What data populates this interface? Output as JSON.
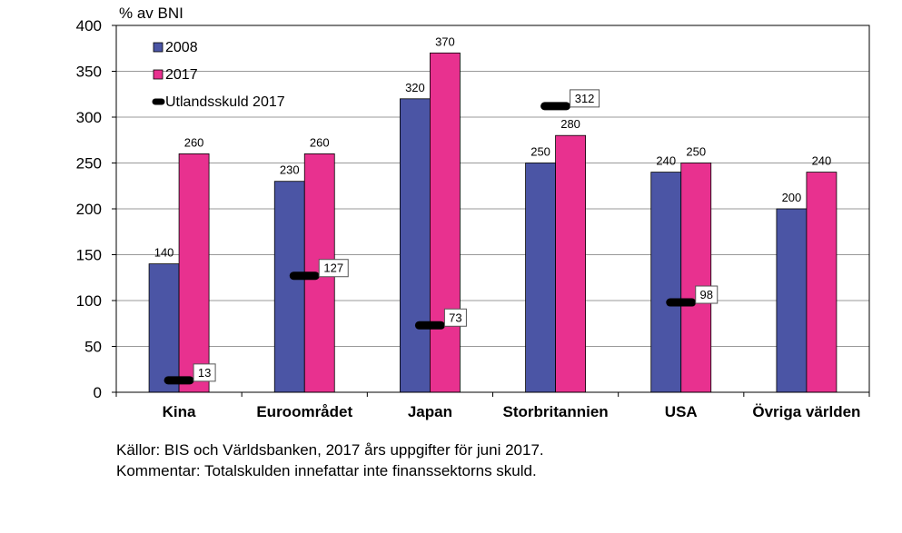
{
  "chart_data": {
    "type": "bar",
    "ylabel": "% av BNI",
    "ylim": [
      0,
      400
    ],
    "yticks": [
      0,
      50,
      100,
      150,
      200,
      250,
      300,
      350,
      400
    ],
    "grid": true,
    "legend_position": "top-left",
    "categories": [
      "Kina",
      "Euroområdet",
      "Japan",
      "Storbritannien",
      "USA",
      "Övriga världen"
    ],
    "series": [
      {
        "name": "2008",
        "values": [
          140,
          230,
          320,
          250,
          240,
          200
        ],
        "color": "#4b55a5"
      },
      {
        "name": "2017",
        "values": [
          260,
          260,
          370,
          280,
          250,
          240
        ],
        "color": "#e8318f"
      }
    ],
    "markers": {
      "name": "Utlandsskuld 2017",
      "values": [
        13,
        127,
        73,
        312,
        98,
        null
      ],
      "color": "#000000"
    }
  },
  "footnotes": {
    "source": "Källor: BIS och Världsbanken, 2017 års uppgifter för juni 2017.",
    "comment": "Kommentar: Totalskulden innefattar inte finanssektorns skuld."
  }
}
